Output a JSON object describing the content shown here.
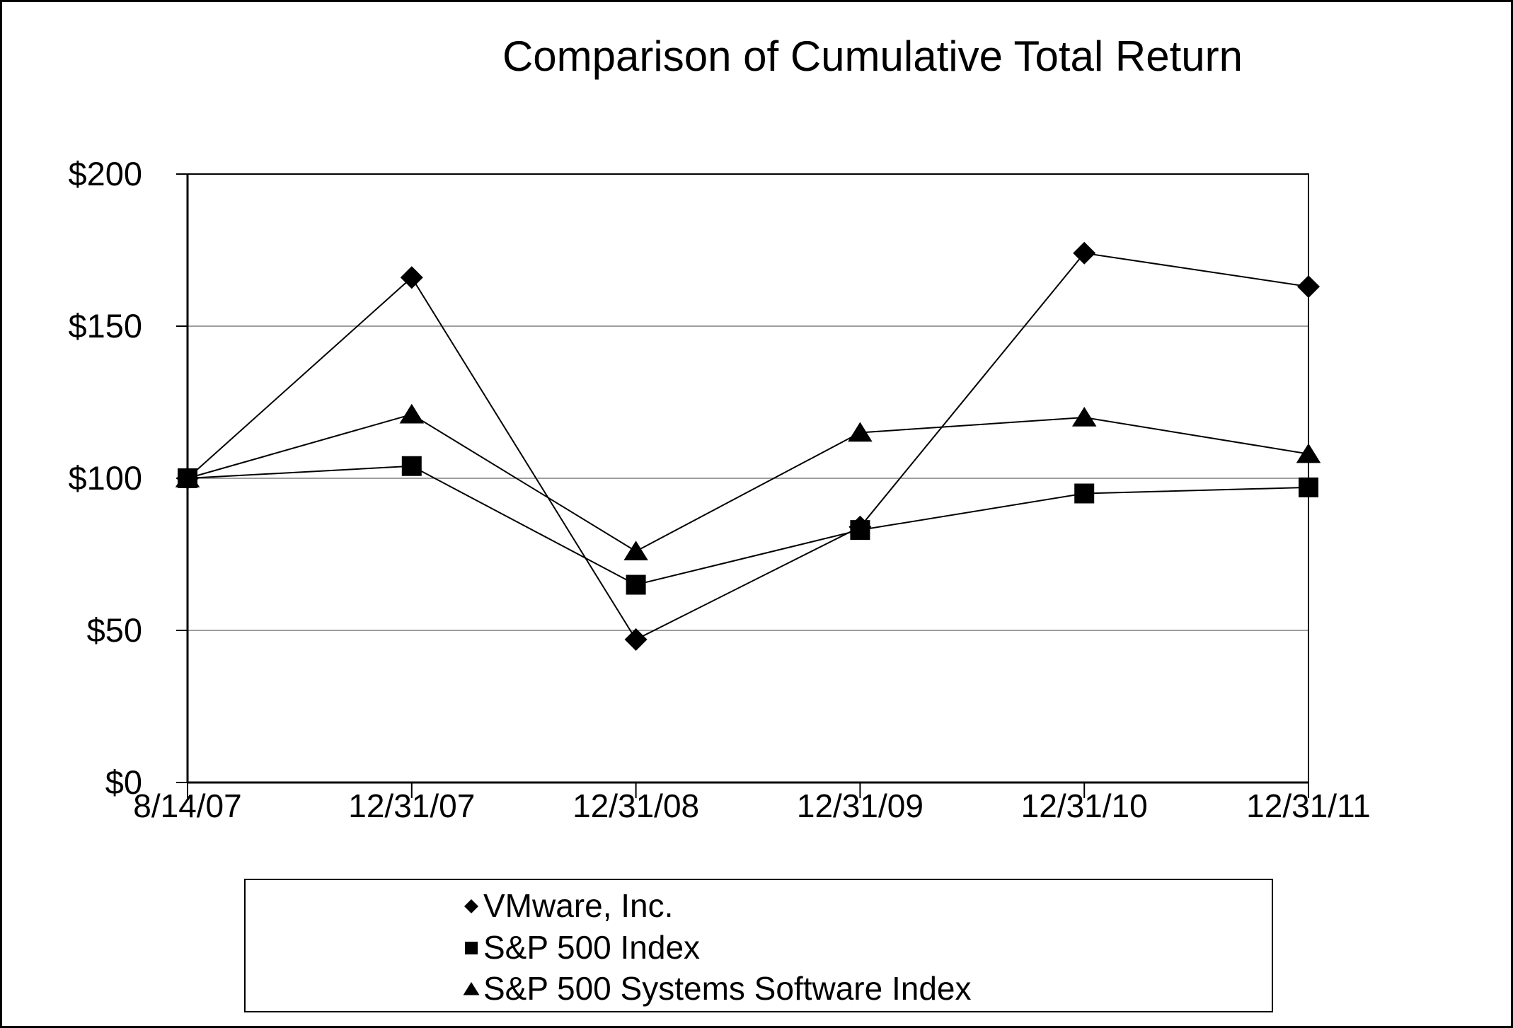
{
  "title": "Comparison of Cumulative Total Return",
  "colors": {
    "series": "#000000",
    "axis": "#000000",
    "gridline": "#9e9e9e",
    "background": "#ffffff"
  },
  "chart_data": {
    "type": "line",
    "title": "Comparison of Cumulative Total Return",
    "xlabel": "",
    "ylabel": "",
    "ylim": [
      0,
      200
    ],
    "grid": true,
    "gridline_values": [
      50,
      100,
      150
    ],
    "legend_position": "bottom",
    "x_labels": [
      "8/14/07",
      "12/31/07",
      "12/31/08",
      "12/31/09",
      "12/31/10",
      "12/31/11"
    ],
    "y_axis": {
      "ticks": [
        {
          "label": "$200",
          "value": 200
        },
        {
          "label": "$150",
          "value": 150
        },
        {
          "label": "$100",
          "value": 100
        },
        {
          "label": "$50",
          "value": 50
        },
        {
          "label": "$0",
          "value": 0
        }
      ]
    },
    "series": [
      {
        "name": "VMware, Inc.",
        "marker": "diamond",
        "values": [
          100,
          166,
          47,
          84,
          174,
          163
        ]
      },
      {
        "name": "S&P 500 Index",
        "marker": "square",
        "values": [
          100,
          104,
          65,
          83,
          95,
          97
        ]
      },
      {
        "name": "S&P 500 Systems Software Index",
        "marker": "triangle",
        "values": [
          100,
          121,
          76,
          115,
          120,
          108
        ]
      }
    ]
  }
}
